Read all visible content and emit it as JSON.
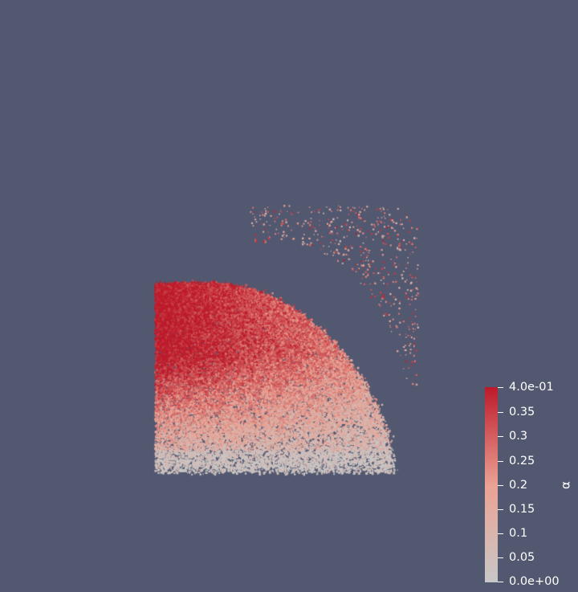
{
  "viewer": {
    "background_color": "#525870"
  },
  "colorbar": {
    "title": "α",
    "colormap": "Cool to Warm (upper half)",
    "colors": {
      "low": "#c8c8c8",
      "mid": "#eba293",
      "high": "#bd1b2b"
    },
    "range": [
      0.0,
      0.4
    ],
    "labels": {
      "t0": "0.0e+00",
      "t1": "0.05",
      "t2": "0.1",
      "t3": "0.15",
      "t4": "0.2",
      "t5": "0.25",
      "t6": "0.3",
      "t7": "0.35",
      "t8": "4.0e-01"
    },
    "tick_values": [
      0.0,
      0.05,
      0.1,
      0.15,
      0.2,
      0.25,
      0.3,
      0.35,
      0.4
    ]
  }
}
